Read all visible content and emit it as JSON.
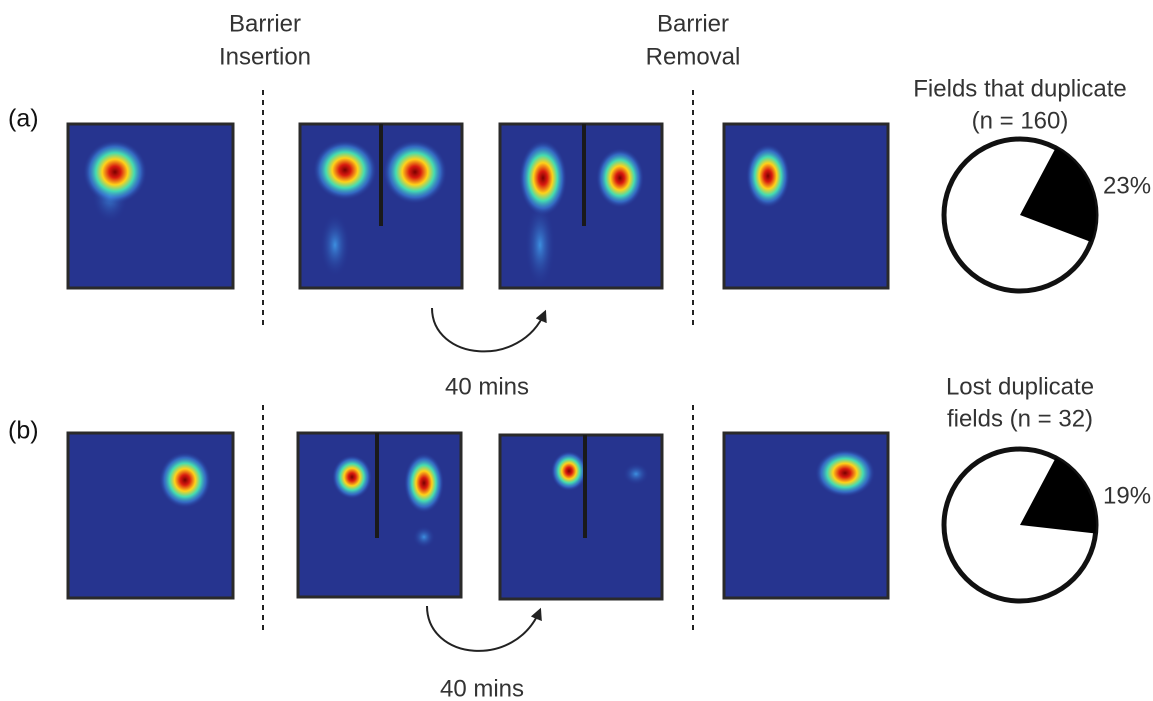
{
  "headers": {
    "insertion": [
      "Barrier",
      "Insertion"
    ],
    "removal": [
      "Barrier",
      "Removal"
    ]
  },
  "rows": [
    {
      "label": "(a)",
      "interval": "40 mins",
      "pie": {
        "title": [
          "Fields that duplicate",
          "(n = 160)"
        ],
        "value": 23,
        "value_label": "23%"
      }
    },
    {
      "label": "(b)",
      "interval": "40 mins",
      "pie": {
        "title": [
          "Lost duplicate",
          "fields (n = 32)"
        ],
        "value": 19,
        "value_label": "19%"
      }
    }
  ]
}
